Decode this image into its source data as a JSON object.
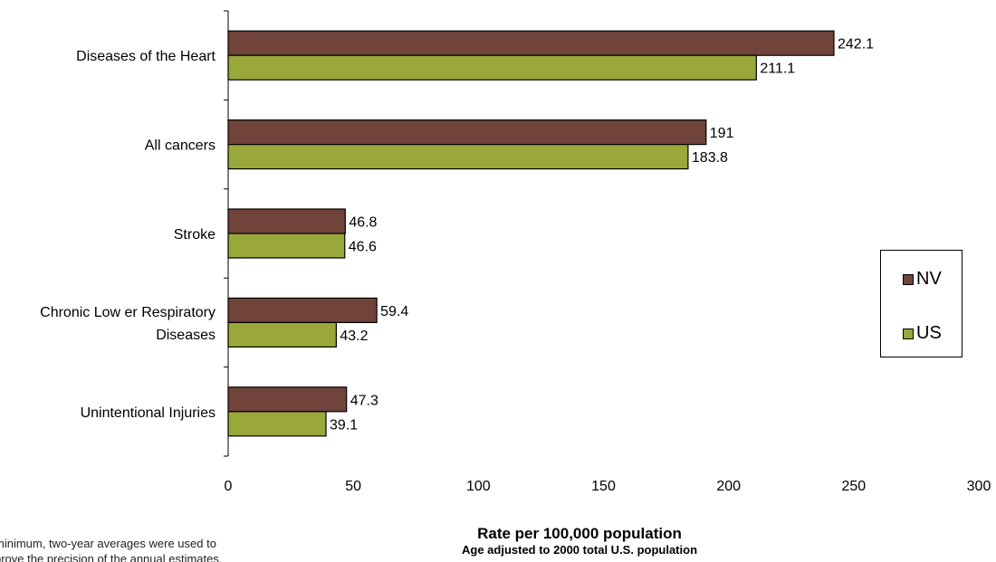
{
  "chart_data": {
    "type": "bar",
    "orientation": "horizontal",
    "categories": [
      "Diseases of the Heart",
      "All cancers",
      "Stroke",
      "Chronic Low er Respiratory Diseases",
      "Unintentional Injuries"
    ],
    "category_lines": [
      [
        "Diseases of the Heart"
      ],
      [
        "All cancers"
      ],
      [
        "Stroke"
      ],
      [
        "Chronic Low er Respiratory",
        "Diseases"
      ],
      [
        "Unintentional Injuries"
      ]
    ],
    "series": [
      {
        "name": "NV",
        "color": "#70443a",
        "values": [
          242.1,
          191,
          46.8,
          59.4,
          47.3
        ],
        "labels": [
          "242.1",
          "191",
          "46.8",
          "59.4",
          "47.3"
        ]
      },
      {
        "name": "US",
        "color": "#9aa73a",
        "values": [
          211.1,
          183.8,
          46.6,
          43.2,
          39.1
        ],
        "labels": [
          "211.1",
          "183.8",
          "46.6",
          "43.2",
          "39.1"
        ]
      }
    ],
    "xlim": [
      0,
      300
    ],
    "xticks": [
      0,
      50,
      100,
      150,
      200,
      250,
      300
    ],
    "xlabel": "Rate per 100,000 population",
    "xlabel_sub": "Age adjusted to 2000 total U.S. population",
    "legend_position": "right",
    "grid": false
  },
  "footnote": {
    "line1": "minimum, two-year averages were used to",
    "line2": "prove the precision of the annual estimates."
  }
}
